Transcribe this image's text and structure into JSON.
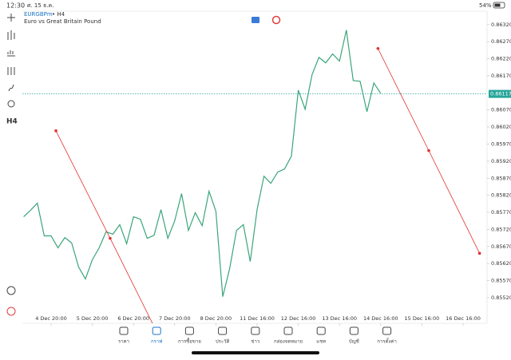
{
  "status_bar": {
    "time": "12:30",
    "date": "ศ. 15 ธ.ค.",
    "battery": "54%"
  },
  "toolbar": {
    "timeframe": "H4"
  },
  "chart_data": {
    "type": "line",
    "title": "EURGBPm",
    "period": "• H4",
    "subtitle": "Euro vs Great Britain Pound",
    "series": [
      {
        "color": "#3aa57a",
        "values": [
          0.85757,
          0.85776,
          0.85797,
          0.85701,
          0.85701,
          0.85666,
          0.85696,
          0.8568,
          0.8561,
          0.85575,
          0.85631,
          0.85666,
          0.85713,
          0.85706,
          0.85734,
          0.85678,
          0.85757,
          0.8575,
          0.85694,
          0.85703,
          0.85778,
          0.85694,
          0.85745,
          0.85825,
          0.85717,
          0.85769,
          0.85731,
          0.85832,
          0.85773,
          0.85523,
          0.85605,
          0.85717,
          0.85734,
          0.85626,
          0.85778,
          0.85876,
          0.85855,
          0.85888,
          0.85897,
          0.85935,
          0.86128,
          0.86072,
          0.86173,
          0.86224,
          0.86208,
          0.86234,
          0.86213,
          0.86304,
          0.86156,
          0.86154,
          0.86065,
          0.86149,
          0.86119
        ]
      }
    ],
    "drawings": [
      {
        "color": "#e03030",
        "x": [
          4.7,
          12.6,
          19.6
        ],
        "values": [
          0.86009,
          0.85694,
          0.85411
        ]
      },
      {
        "color": "#e03030",
        "x": [
          51.6,
          59,
          66.4
        ],
        "values": [
          0.8625,
          0.85951,
          0.8565
        ]
      }
    ],
    "current_price": 0.86117,
    "current_color": "#26a69a",
    "xlim": [
      0,
      67
    ],
    "xticks": [
      {
        "value": 4,
        "label": "4 Dec 20:00"
      },
      {
        "value": 10,
        "label": "5 Dec 20:00"
      },
      {
        "value": 16,
        "label": "6 Dec 20:00"
      },
      {
        "value": 22,
        "label": "7 Dec 20:00"
      },
      {
        "value": 28,
        "label": "8 Dec 20:00"
      },
      {
        "value": 34,
        "label": "11 Dec 16:00"
      },
      {
        "value": 40,
        "label": "12 Dec 16:00"
      },
      {
        "value": 46,
        "label": "13 Dec 16:00"
      },
      {
        "value": 52,
        "label": "14 Dec 16:00"
      },
      {
        "value": 58,
        "label": "15 Dec 16:00"
      },
      {
        "value": 64,
        "label": "16 Dec 16:00"
      }
    ],
    "ylim": [
      0.85445,
      0.86357
    ],
    "yticks": [
      {
        "value": 0.8632,
        "label": "0.86320"
      },
      {
        "value": 0.8627,
        "label": "0.86270"
      },
      {
        "value": 0.8622,
        "label": "0.86220"
      },
      {
        "value": 0.8617,
        "label": "0.86170"
      },
      {
        "value": 0.8607,
        "label": "0.86070"
      },
      {
        "value": 0.8602,
        "label": "0.86020"
      },
      {
        "value": 0.8597,
        "label": "0.85970"
      },
      {
        "value": 0.8592,
        "label": "0.85920"
      },
      {
        "value": 0.8587,
        "label": "0.85870"
      },
      {
        "value": 0.8582,
        "label": "0.85820"
      },
      {
        "value": 0.8577,
        "label": "0.85770"
      },
      {
        "value": 0.8572,
        "label": "0.85720"
      },
      {
        "value": 0.8567,
        "label": "0.85670"
      },
      {
        "value": 0.8562,
        "label": "0.85620"
      },
      {
        "value": 0.8557,
        "label": "0.85570"
      },
      {
        "value": 0.8552,
        "label": "0.85520"
      }
    ],
    "grid": false
  },
  "tabs": [
    "ราคา",
    "กราฟ",
    "การซื้อขาย",
    "ประวัติ",
    "ข่าว",
    "กล่องจดหมาย",
    "แชท",
    "บัญชี",
    "การตั้งค่า"
  ],
  "active_tab": 1
}
